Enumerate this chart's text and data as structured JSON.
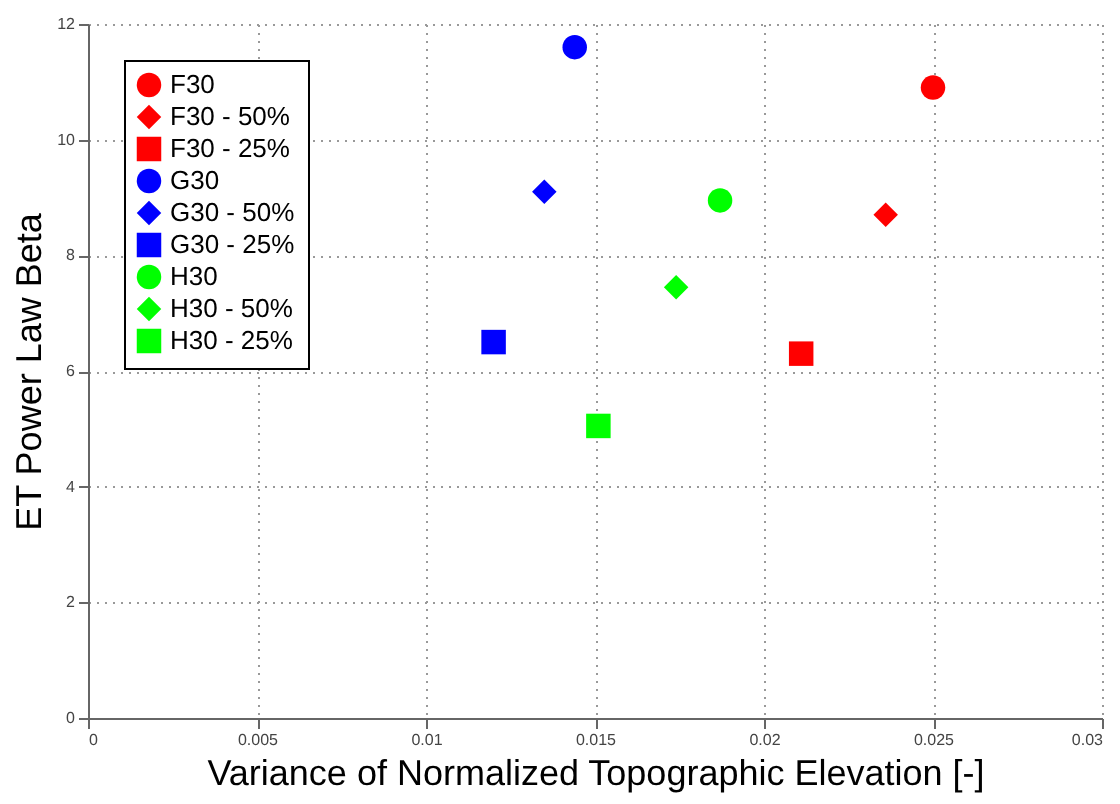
{
  "chart_data": {
    "type": "scatter",
    "xlabel": "Variance of Normalized Topographic Elevation [-]",
    "ylabel": "ET Power Law Beta",
    "xlim": [
      0,
      0.03
    ],
    "xticks": [
      0,
      0.005,
      0.01,
      0.015,
      0.02,
      0.025,
      0.03
    ],
    "ylim": [
      0,
      12
    ],
    "yticks": [
      0,
      2,
      4,
      6,
      8,
      10,
      12
    ],
    "grid": true,
    "legend": "top left",
    "series": [
      {
        "name": "F30",
        "color": "#ff0000",
        "marker": "circle",
        "x": [
          0.025
        ],
        "values": [
          10.9
        ]
      },
      {
        "name": "F30 - 50%",
        "color": "#ff0000",
        "marker": "diamond",
        "x": [
          0.0236
        ],
        "values": [
          8.7
        ]
      },
      {
        "name": "F30 - 25%",
        "color": "#ff0000",
        "marker": "square",
        "x": [
          0.0211
        ],
        "values": [
          6.3
        ]
      },
      {
        "name": "G30",
        "color": "#0000ff",
        "marker": "circle",
        "x": [
          0.0144
        ],
        "values": [
          11.6
        ]
      },
      {
        "name": "G30 - 50%",
        "color": "#0000ff",
        "marker": "diamond",
        "x": [
          0.0135
        ],
        "values": [
          9.1
        ]
      },
      {
        "name": "G30 - 25%",
        "color": "#0000ff",
        "marker": "square",
        "x": [
          0.012
        ],
        "values": [
          6.5
        ]
      },
      {
        "name": "H30",
        "color": "#00ff00",
        "marker": "circle",
        "x": [
          0.0187
        ],
        "values": [
          8.95
        ]
      },
      {
        "name": "H30 - 50%",
        "color": "#00ff00",
        "marker": "diamond",
        "x": [
          0.0174
        ],
        "values": [
          7.45
        ]
      },
      {
        "name": "H30 - 25%",
        "color": "#00ff00",
        "marker": "square",
        "x": [
          0.0151
        ],
        "values": [
          5.05
        ]
      }
    ]
  }
}
